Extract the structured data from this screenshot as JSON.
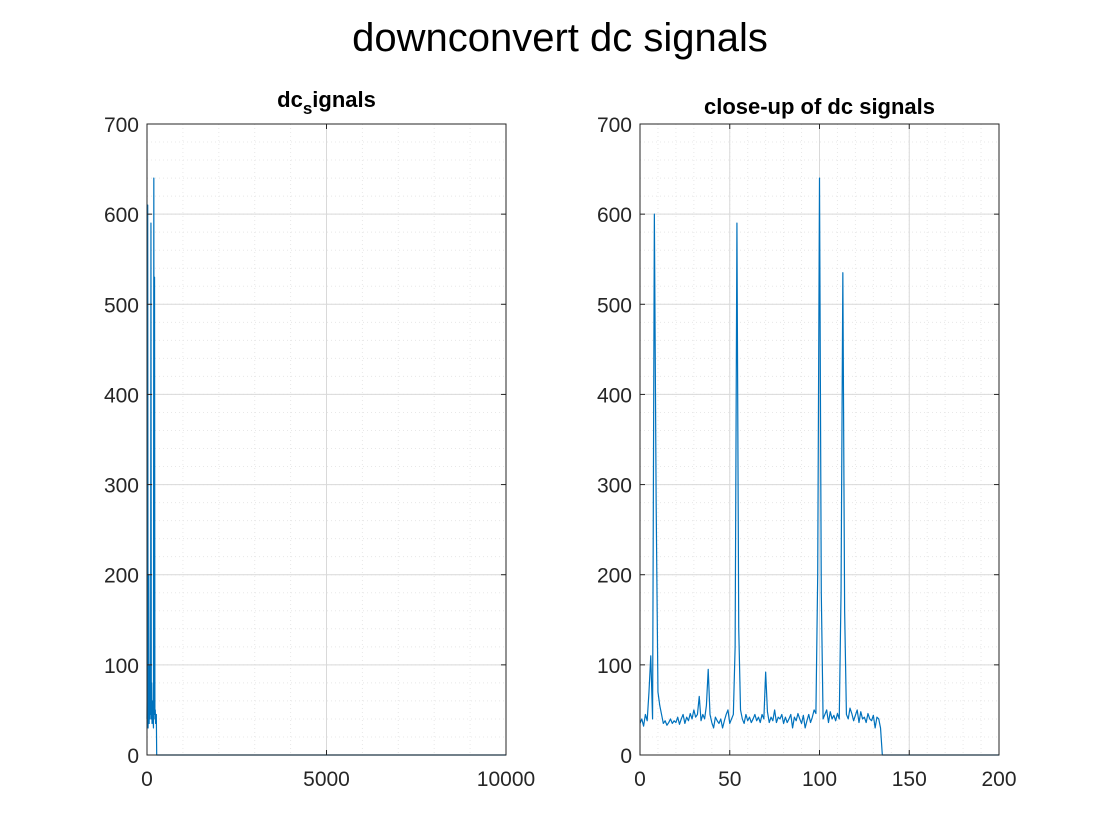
{
  "figure": {
    "title": "downconvert dc signals"
  },
  "colors": {
    "line": "#0072BD",
    "grid_major": "#d9d9d9",
    "grid_minor": "#e8e8e8",
    "axis": "#262626"
  },
  "chart_data": [
    {
      "type": "line",
      "title": "dc",
      "title_subscript": "s",
      "title_rest": "ignals",
      "xlabel": "",
      "ylabel": "",
      "xlim": [
        0,
        10000
      ],
      "ylim": [
        0,
        700
      ],
      "xticks": [
        0,
        5000,
        10000
      ],
      "yticks": [
        0,
        100,
        200,
        300,
        400,
        500,
        600,
        700
      ],
      "grid": "on, minor on",
      "series": [
        {
          "x": [
            0,
            10,
            20,
            30,
            40,
            50,
            60,
            70,
            80,
            90,
            100,
            110,
            120,
            130,
            140,
            150,
            160,
            170,
            180,
            190,
            200,
            210,
            220,
            230,
            240,
            250,
            260,
            270,
            300,
            400,
            1000,
            5000,
            10000
          ],
          "y": [
            40,
            110,
            610,
            30,
            60,
            200,
            35,
            95,
            40,
            100,
            45,
            590,
            40,
            80,
            35,
            60,
            45,
            40,
            30,
            640,
            45,
            530,
            40,
            50,
            35,
            40,
            45,
            0,
            0,
            0,
            0,
            0,
            0
          ]
        }
      ]
    },
    {
      "type": "line",
      "title": "close-up of dc signals",
      "xlabel": "",
      "ylabel": "",
      "xlim": [
        0,
        200
      ],
      "ylim": [
        0,
        700
      ],
      "xticks": [
        0,
        50,
        100,
        150,
        200
      ],
      "yticks": [
        0,
        100,
        200,
        300,
        400,
        500,
        600,
        700
      ],
      "grid": "on, minor on",
      "series": [
        {
          "x": [
            0,
            1,
            2,
            3,
            4,
            5,
            6,
            7,
            8,
            9,
            10,
            11,
            12,
            13,
            14,
            15,
            16,
            17,
            18,
            19,
            20,
            21,
            22,
            23,
            24,
            25,
            26,
            27,
            28,
            29,
            30,
            31,
            32,
            33,
            34,
            35,
            36,
            37,
            38,
            39,
            40,
            41,
            42,
            43,
            44,
            45,
            46,
            47,
            48,
            49,
            50,
            51,
            52,
            53,
            54,
            55,
            56,
            57,
            58,
            59,
            60,
            61,
            62,
            63,
            64,
            65,
            66,
            67,
            68,
            69,
            70,
            71,
            72,
            73,
            74,
            75,
            76,
            77,
            78,
            79,
            80,
            81,
            82,
            83,
            84,
            85,
            86,
            87,
            88,
            89,
            90,
            91,
            92,
            93,
            94,
            95,
            96,
            97,
            98,
            99,
            100,
            101,
            102,
            103,
            104,
            105,
            106,
            107,
            108,
            109,
            110,
            111,
            112,
            113,
            114,
            115,
            116,
            117,
            118,
            119,
            120,
            121,
            122,
            123,
            124,
            125,
            126,
            127,
            128,
            129,
            130,
            131,
            132,
            133,
            134,
            135,
            200
          ],
          "y": [
            35,
            40,
            32,
            45,
            38,
            70,
            110,
            40,
            600,
            280,
            70,
            55,
            45,
            35,
            38,
            33,
            36,
            40,
            35,
            38,
            36,
            42,
            34,
            40,
            45,
            35,
            42,
            38,
            46,
            40,
            50,
            42,
            45,
            65,
            38,
            45,
            40,
            55,
            95,
            45,
            36,
            30,
            42,
            38,
            35,
            40,
            30,
            38,
            45,
            50,
            35,
            40,
            45,
            120,
            590,
            140,
            50,
            40,
            35,
            45,
            38,
            42,
            36,
            40,
            45,
            38,
            42,
            36,
            45,
            40,
            92,
            48,
            36,
            42,
            38,
            50,
            36,
            42,
            40,
            45,
            35,
            42,
            36,
            40,
            45,
            30,
            42,
            38,
            46,
            40,
            35,
            44,
            30,
            38,
            45,
            36,
            42,
            50,
            46,
            200,
            640,
            180,
            40,
            45,
            50,
            36,
            48,
            40,
            44,
            38,
            46,
            40,
            180,
            535,
            160,
            45,
            40,
            52,
            46,
            38,
            44,
            50,
            36,
            48,
            40,
            42,
            36,
            46,
            40,
            38,
            44,
            30,
            42,
            40,
            30,
            0,
            0
          ]
        }
      ]
    }
  ]
}
